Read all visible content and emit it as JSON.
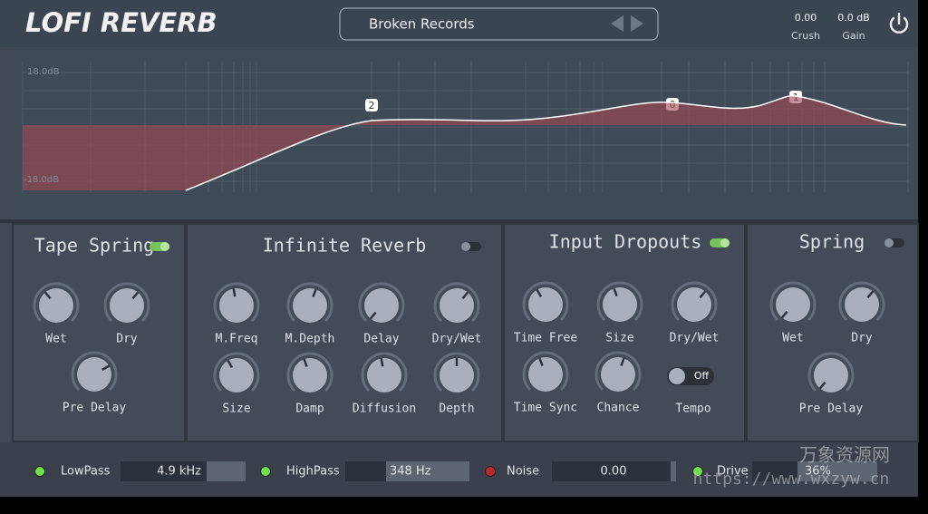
{
  "header": {
    "title": "LOFI REVERB",
    "preset": "Broken Records",
    "crush": {
      "value": "0.00",
      "label": "Crush"
    },
    "gain": {
      "value": "0.0 dB",
      "label": "Gain"
    }
  },
  "eq": {
    "top_label": "18.0dB",
    "bottom_label": "-18.0dB",
    "nodes": [
      "2",
      "0",
      "1"
    ]
  },
  "panels": [
    {
      "title": "Tape Spring",
      "on": true,
      "knobs": [
        "Wet",
        "Dry",
        "Pre Delay"
      ]
    },
    {
      "title": "Infinite Reverb",
      "on": false,
      "knobs": [
        "M.Freq",
        "M.Depth",
        "Delay",
        "Dry/Wet",
        "Size",
        "Damp",
        "Diffusion",
        "Depth"
      ]
    },
    {
      "title": "Input Dropouts",
      "on": true,
      "knobs": [
        "Time Free",
        "Size",
        "Dry/Wet",
        "Time Sync",
        "Chance"
      ],
      "toggle": {
        "label": "Tempo",
        "state": "Off"
      }
    },
    {
      "title": "Spring",
      "on": false,
      "knobs": [
        "Wet",
        "Dry",
        "Pre Delay"
      ]
    }
  ],
  "bottom": [
    {
      "label": "LowPass",
      "value": "4.9 kHz"
    },
    {
      "label": "HighPass",
      "value": "348 Hz"
    },
    {
      "label": "Noise",
      "value": "0.00"
    },
    {
      "label": "Drive",
      "value": "36%"
    }
  ],
  "watermark": {
    "name": "万象资源网",
    "url": "https://www.wxzyw.cn"
  }
}
